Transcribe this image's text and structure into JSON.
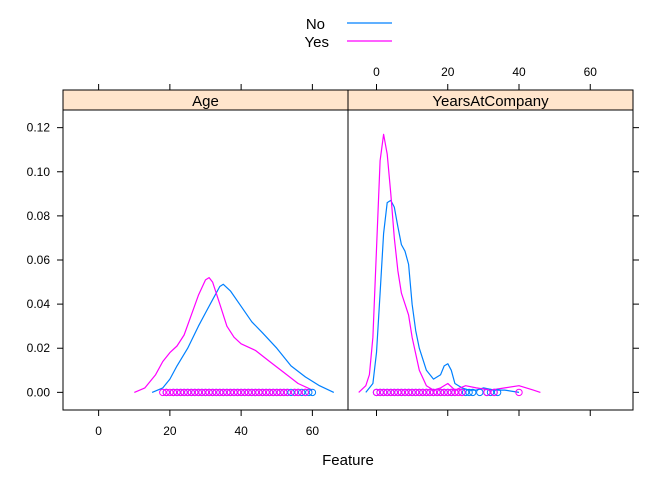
{
  "chart_data": {
    "type": "line",
    "subtype": "density-plot-with-rug",
    "xlabel": "Feature",
    "ylabel": "",
    "ylim": [
      -0.008,
      0.128
    ],
    "yticks": [
      0.0,
      0.02,
      0.04,
      0.06,
      0.08,
      0.1,
      0.12
    ],
    "ytick_labels": [
      "0.00",
      "0.02",
      "0.04",
      "0.06",
      "0.08",
      "0.10",
      "0.12"
    ],
    "grid": false,
    "legend": {
      "position": "top-center",
      "entries": [
        {
          "label": "No",
          "color": "#0080ff"
        },
        {
          "label": "Yes",
          "color": "#ff00ff"
        }
      ]
    },
    "strip_color": "#ffe5cc",
    "panels": [
      {
        "strip": "Age",
        "xlim": [
          -10,
          70
        ],
        "xticks": [
          0,
          20,
          40,
          60
        ],
        "xtick_labels": [
          "0",
          "20",
          "40",
          "60"
        ],
        "axis_side": "bottom",
        "series": [
          {
            "name": "No",
            "color": "#0080ff",
            "x": [
              15,
              18,
              20,
              22,
              25,
              28,
              30,
              32,
              34,
              35,
              37,
              40,
              43,
              46,
              50,
              54,
              58,
              62,
              66
            ],
            "y": [
              0.0,
              0.002,
              0.006,
              0.012,
              0.02,
              0.03,
              0.036,
              0.042,
              0.048,
              0.049,
              0.046,
              0.039,
              0.032,
              0.027,
              0.02,
              0.012,
              0.007,
              0.003,
              0.0
            ]
          },
          {
            "name": "Yes",
            "color": "#ff00ff",
            "x": [
              10,
              13,
              16,
              18,
              20,
              22,
              24,
              26,
              28,
              30,
              31,
              32,
              34,
              36,
              38,
              40,
              44,
              48,
              52,
              56,
              60
            ],
            "y": [
              0.0,
              0.002,
              0.008,
              0.014,
              0.018,
              0.021,
              0.026,
              0.035,
              0.044,
              0.051,
              0.052,
              0.05,
              0.04,
              0.03,
              0.025,
              0.022,
              0.019,
              0.014,
              0.009,
              0.004,
              0.001
            ]
          }
        ],
        "rug": [
          {
            "name": "No",
            "color": "#0080ff",
            "x": [
              19,
              21,
              22,
              23,
              24,
              25,
              26,
              27,
              28,
              29,
              30,
              31,
              32,
              33,
              34,
              35,
              36,
              37,
              38,
              39,
              40,
              41,
              42,
              43,
              44,
              45,
              46,
              47,
              48,
              49,
              50,
              51,
              52,
              53,
              54,
              55,
              56,
              57,
              58,
              59,
              60
            ]
          },
          {
            "name": "Yes",
            "color": "#ff00ff",
            "x": [
              18,
              19,
              20,
              21,
              22,
              23,
              24,
              25,
              26,
              27,
              28,
              29,
              30,
              31,
              32,
              33,
              34,
              35,
              36,
              37,
              38,
              39,
              40,
              41,
              42,
              43,
              44,
              45,
              46,
              47,
              48,
              49,
              50,
              51,
              52,
              53,
              55,
              56,
              58
            ]
          }
        ]
      },
      {
        "strip": "YearsAtCompany",
        "xlim": [
          -8,
          72
        ],
        "xticks": [
          0,
          20,
          40,
          60
        ],
        "xtick_labels": [
          "0",
          "20",
          "40",
          "60"
        ],
        "axis_side": "top",
        "series": [
          {
            "name": "No",
            "color": "#0080ff",
            "x": [
              -3,
              -1,
              0,
              1,
              2,
              3,
              4,
              5,
              6,
              7,
              8,
              9,
              10,
              11,
              12,
              14,
              16,
              18,
              19,
              20,
              21,
              22,
              24,
              26,
              28,
              30,
              33,
              36,
              40
            ],
            "y": [
              0.0,
              0.004,
              0.018,
              0.045,
              0.072,
              0.086,
              0.087,
              0.084,
              0.075,
              0.067,
              0.064,
              0.058,
              0.04,
              0.028,
              0.02,
              0.01,
              0.006,
              0.008,
              0.012,
              0.013,
              0.01,
              0.004,
              0.002,
              0.001,
              0.001,
              0.002,
              0.001,
              0.001,
              0.0
            ]
          },
          {
            "name": "Yes",
            "color": "#ff00ff",
            "x": [
              -5,
              -3,
              -2,
              -1,
              0,
              1,
              2,
              3,
              4,
              5,
              6,
              7,
              8,
              9,
              10,
              12,
              14,
              16,
              18,
              20,
              22,
              25,
              28,
              32,
              36,
              40,
              44,
              46
            ],
            "y": [
              0.0,
              0.003,
              0.008,
              0.025,
              0.065,
              0.105,
              0.117,
              0.108,
              0.09,
              0.07,
              0.055,
              0.045,
              0.04,
              0.035,
              0.025,
              0.01,
              0.003,
              0.001,
              0.002,
              0.004,
              0.001,
              0.003,
              0.002,
              0.001,
              0.002,
              0.003,
              0.001,
              0.0
            ]
          }
        ],
        "rug": [
          {
            "name": "No",
            "color": "#0080ff",
            "x": [
              0,
              1,
              2,
              3,
              4,
              5,
              6,
              7,
              8,
              9,
              10,
              11,
              12,
              13,
              14,
              15,
              16,
              17,
              18,
              19,
              20,
              21,
              22,
              24,
              25,
              26,
              27,
              29,
              31,
              32,
              33,
              34
            ]
          },
          {
            "name": "Yes",
            "color": "#ff00ff",
            "x": [
              0,
              1,
              2,
              3,
              4,
              5,
              6,
              7,
              8,
              9,
              10,
              11,
              12,
              13,
              14,
              15,
              16,
              17,
              18,
              19,
              20,
              21,
              22,
              23,
              24,
              31,
              33,
              40
            ]
          }
        ]
      }
    ]
  }
}
